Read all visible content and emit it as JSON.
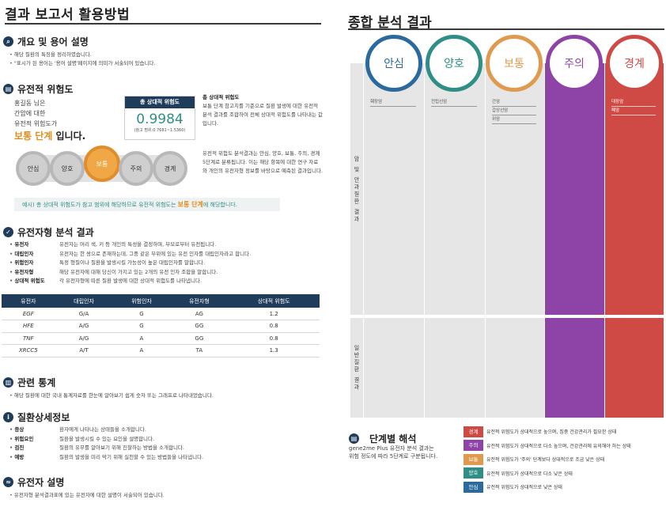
{
  "left": {
    "title": "결과 보고서 활용방법",
    "overview": {
      "heading": "개요 및 용어 설명",
      "bullets": [
        "해당 질환의 특징을 정리하였습니다.",
        "\"표시가 된 용어는 '용어 설명'페이지에 의미가 서술되어 있습니다."
      ]
    },
    "risk": {
      "heading": "유전적 위험도",
      "desc_lines": [
        "홍길동 님은",
        "간암에 대한",
        "유전적 위험도가"
      ],
      "grade_highlight": "보통 단계",
      "grade_suffix": " 입니다.",
      "score_label": "총 상대적 위험도",
      "score_value": "0.9984",
      "score_ref": "(참고 범위:0.7681~1.5360)",
      "note1_title": "총 상대적 위험도",
      "note1_text": "보통 단계 참고치를 기준으로 질환 발생에 대한 유전적 분석 결과를 조합하여 전체 상대적 위험도를 나타내는 값입니다.",
      "note2_text": "유전적 위험도 분석결과는 안심, 양호, 보통, 주의, 경계 5단계로 분류됩니다. 이는 해당 항목에 대한 연구 자료와 개인의 유전자형 정보를 바탕으로 예측된 결과입니다.",
      "scale": [
        "안심",
        "양호",
        "보통",
        "주의",
        "경계"
      ],
      "example_prefix": "예시) 총 상대적 위험도가 참고 범위에 해당하므로 유전적 위험도는 ",
      "example_highlight": "보통 단계",
      "example_suffix": "에 해당합니다."
    },
    "genotype": {
      "heading": "유전자형 분석 결과",
      "terms": [
        {
          "k": "유전자",
          "v": "유전자는 머리 색, 키 등 개인의 특성을 결정하며, 부모로부터 유전됩니다."
        },
        {
          "k": "대립인자",
          "v": "유전자는 한 쌍으로 존재하는데, 그중 같은 부위에 있는 유전 인자를 대립인자라고 합니다."
        },
        {
          "k": "위험인자",
          "v": "특정 형질이나 질환을 발생시킬 가능성이 높은 대립인자를 말합니다."
        },
        {
          "k": "유전자형",
          "v": "해당 유전자에 대해 당신이 가지고 있는 2개의 유전 인자 조합을 말합니다."
        },
        {
          "k": "상대적 위험도",
          "v": "각 유전자형에 따른 질환 발생에 대한 상대적 위험도를 나타냅니다."
        }
      ],
      "table": {
        "headers": [
          "유전자",
          "대립인자",
          "위험인자",
          "유전자형",
          "상대적 위험도"
        ],
        "rows": [
          [
            "EGF",
            "G/A",
            "G",
            "AG",
            "1.2"
          ],
          [
            "HFE",
            "A/G",
            "G",
            "GG",
            "0.8"
          ],
          [
            "TNF",
            "A/G",
            "A",
            "GG",
            "0.8"
          ],
          [
            "XRCC5",
            "A/T",
            "A",
            "TA",
            "1.3"
          ]
        ]
      }
    },
    "stats": {
      "heading": "관련 통계",
      "bullets": [
        "해당 질환에 대한 국내 통계자료를 한눈에 알아보기 쉽게 숫자 또는 그래프로 나타내었습니다."
      ]
    },
    "detail": {
      "heading": "질환상세정보",
      "terms": [
        {
          "k": "증상",
          "v": "환자에게 나타나는 상태들을 소개합니다."
        },
        {
          "k": "위험요인",
          "v": "질환을 발생시킬 수 있는 요인을 설명합니다."
        },
        {
          "k": "검진",
          "v": "질환의 유무를 알아보기 위해 진찰하는 방법을 소개합니다."
        },
        {
          "k": "예방",
          "v": "질환의 발생을 미리 막기 위해 실천할 수 있는 방법들을 나타냅니다."
        }
      ]
    },
    "gene_desc": {
      "heading": "유전자 설명",
      "bullets": [
        "유전자형 분석결과표에 있는 유전자에 대한 설명이 서술되어 있습니다."
      ]
    }
  },
  "right": {
    "title": "종합 분석 결과",
    "side_top": "암 및 안과질환 결과",
    "side_bottom": "일반질환 결과",
    "columns": [
      {
        "label": "안심",
        "color": "#2b6a9e",
        "items": [
          "췌장암"
        ]
      },
      {
        "label": "양호",
        "color": "#2f8f86",
        "items": [
          "전립선암"
        ]
      },
      {
        "label": "보통",
        "color": "#e09a4f",
        "items": [
          "간암",
          "갑상선암",
          "위암"
        ]
      },
      {
        "label": "주의",
        "color": "#8e44a6",
        "items": []
      },
      {
        "label": "경계",
        "color": "#cf4a45",
        "items": [
          "대장암",
          "폐암"
        ]
      }
    ],
    "stage": {
      "heading": "단계별 해석",
      "sub1": "gene2me Plus 유전자 분석 결과는",
      "sub2": "위험 정도에 따라 5단계로 구분됩니다."
    },
    "legend": [
      {
        "label": "경계",
        "color": "#cf4a45",
        "text": "유전적 위험도가 상대적으로 높으며, 집중 건강관리가 필요한 상태"
      },
      {
        "label": "주의",
        "color": "#8e44a6",
        "text": "유전적 위험도가 상대적으로 다소 높으며, 건강관리에 유의해야 하는 상태"
      },
      {
        "label": "보통",
        "color": "#e09a4f",
        "text": "유전적 위험도가 '주의' 단계보다 상대적으로 조금 낮은 상태"
      },
      {
        "label": "양호",
        "color": "#2f8f86",
        "text": "유전적 위험도가 상대적으로 다소 낮은 상태"
      },
      {
        "label": "안심",
        "color": "#2b6a9e",
        "text": "유전적 위험도가 상대적으로 낮은 상태"
      }
    ]
  }
}
